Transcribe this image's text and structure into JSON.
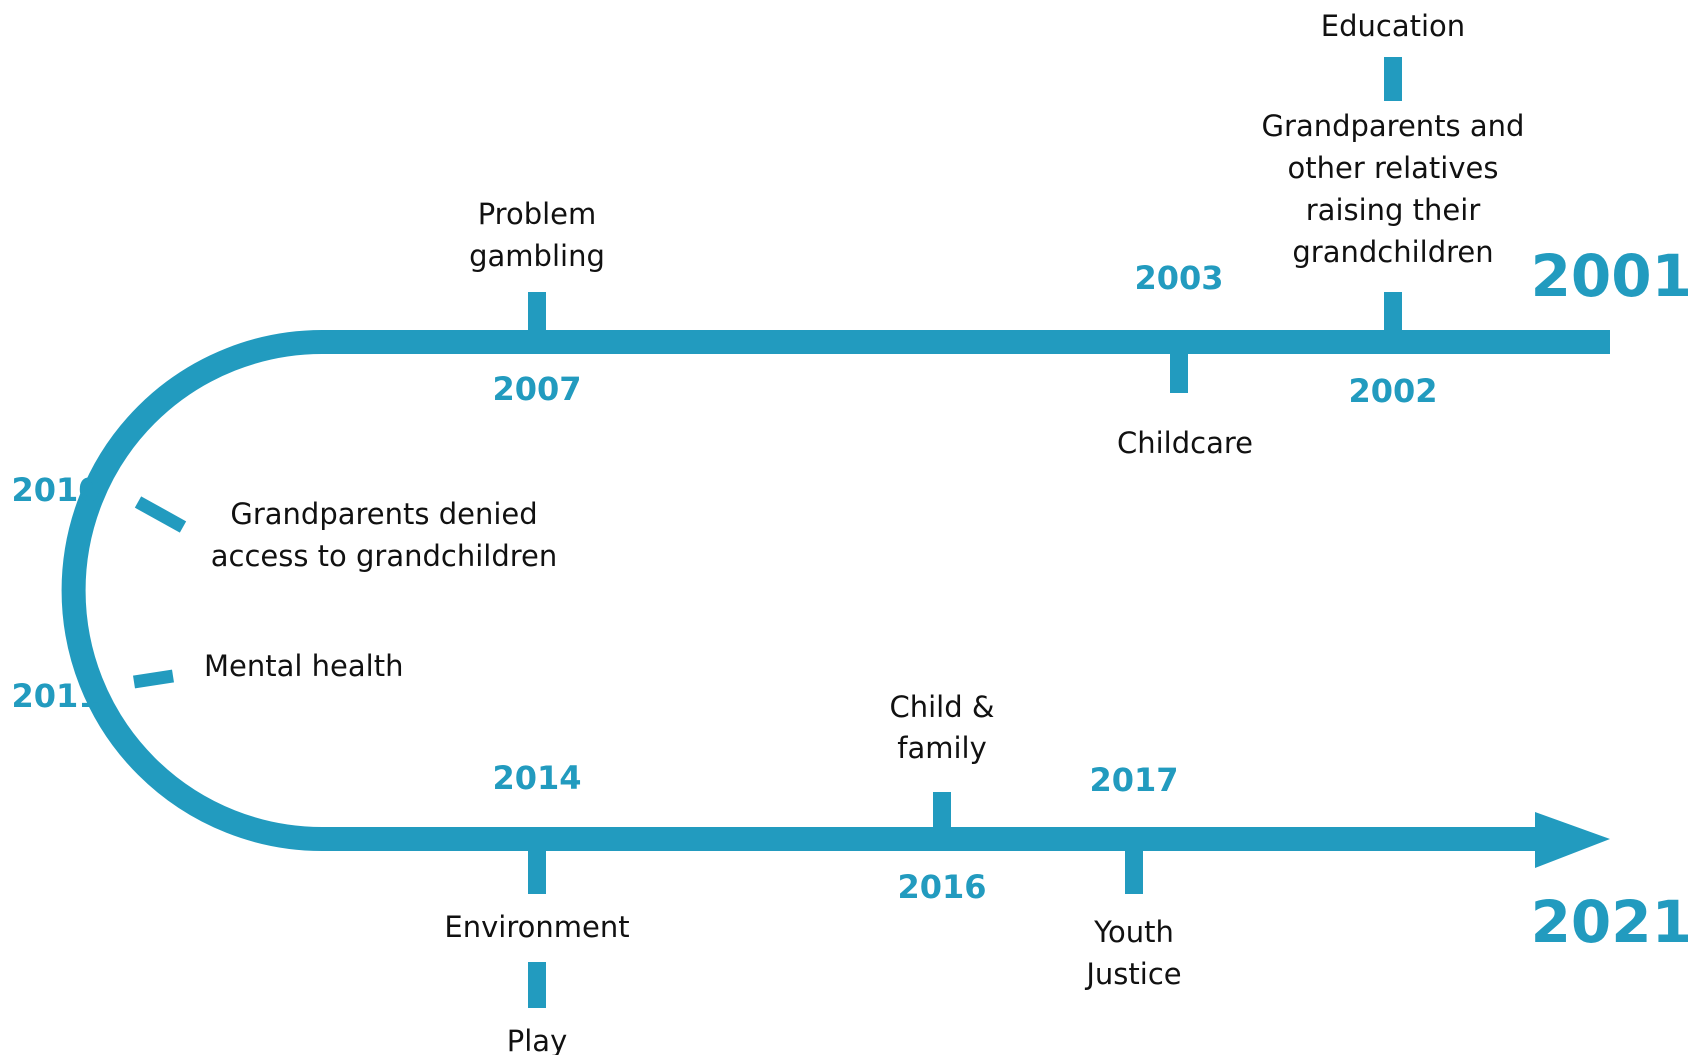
{
  "start": "2001",
  "end": "2021",
  "events": [
    {
      "year": "2002",
      "label": [
        "Grandparents and",
        "other relatives",
        "raising their",
        "grandchildren"
      ],
      "extra": "Education"
    },
    {
      "year": "2003",
      "label": [
        "Childcare"
      ]
    },
    {
      "year": "2007",
      "label": [
        "Problem",
        "gambling"
      ]
    },
    {
      "year": "2010",
      "label": [
        "Grandparents denied",
        "access to grandchildren"
      ]
    },
    {
      "year": "2011",
      "label": [
        "Mental health"
      ]
    },
    {
      "year": "2014",
      "label": [
        "Environment"
      ],
      "extra": "Play"
    },
    {
      "year": "2016",
      "label": [
        "Child &",
        "family"
      ]
    },
    {
      "year": "2017",
      "label": [
        "Youth",
        "Justice"
      ]
    }
  ]
}
